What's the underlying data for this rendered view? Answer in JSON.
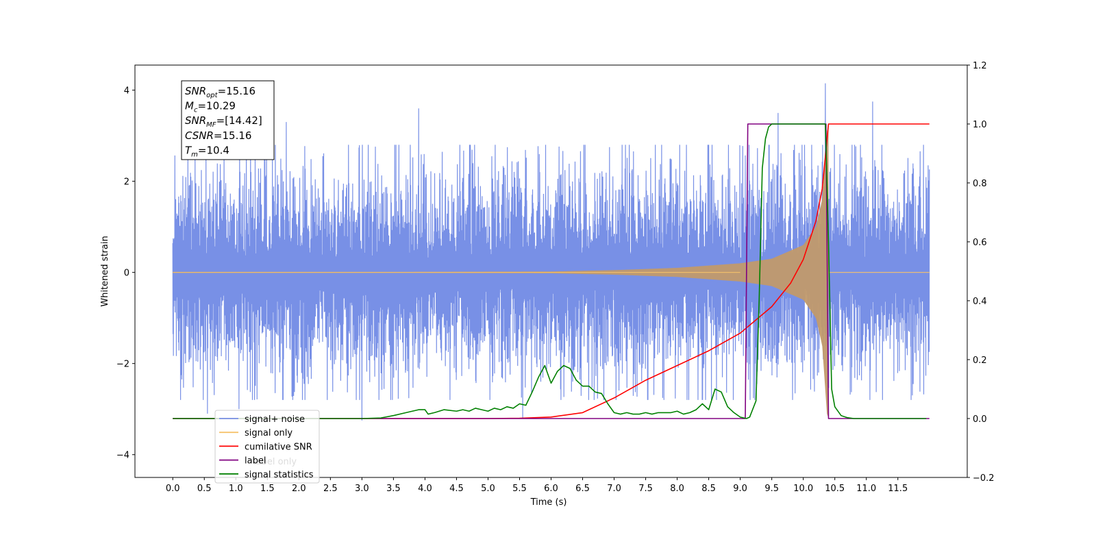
{
  "chart_data": {
    "type": "line",
    "xlabel": "Time (s)",
    "ylabel": "Whitened strain",
    "xlim": [
      -0.6,
      12.6
    ],
    "ylim": [
      -4.5,
      4.55
    ],
    "y2lim": [
      -0.2,
      1.2
    ],
    "x_ticks": [
      "0.0",
      "0.5",
      "1.0",
      "1.5",
      "2.0",
      "2.5",
      "3.0",
      "3.5",
      "4.0",
      "4.5",
      "5.0",
      "5.5",
      "6.0",
      "6.5",
      "7.0",
      "7.5",
      "8.0",
      "8.5",
      "9.0",
      "9.5",
      "10.0",
      "10.5",
      "11.0",
      "11.5"
    ],
    "y_ticks": [
      "4",
      "2",
      "0",
      "−2",
      "−4"
    ],
    "y_tick_values": [
      4,
      2,
      0,
      -2,
      -4
    ],
    "y2_ticks": [
      "1.2",
      "1.0",
      "0.8",
      "0.6",
      "0.4",
      "0.2",
      "0.0",
      "−0.2"
    ],
    "y2_tick_values": [
      1.2,
      1.0,
      0.8,
      0.6,
      0.4,
      0.2,
      0.0,
      -0.2
    ],
    "annotation": {
      "lines": [
        {
          "sym": "SNR",
          "sub": "opt",
          "value": "=15.16"
        },
        {
          "sym": "M",
          "sub": "c",
          "value": "=10.29"
        },
        {
          "sym": "SNR",
          "sub": "MF",
          "value": "=[14.42]"
        },
        {
          "sym": "CSNR",
          "sub": "",
          "value": "=15.16"
        },
        {
          "sym": "T",
          "sub": "m",
          "value": "=10.4"
        }
      ]
    },
    "legend": {
      "placement": "lower-left",
      "entries": [
        "signal+ noise",
        "signal only",
        "cumilative SNR",
        "label",
        "signal statistics"
      ],
      "ghost_labels": [
        "label only"
      ]
    },
    "series": [
      {
        "name": "signal+ noise",
        "axis": "left",
        "color": "#7890e6",
        "t_range": [
          0.0,
          12.0
        ],
        "typical_envelope": 2.0,
        "notable_peaks": [
          [
            0.55,
            -3.1
          ],
          [
            1.05,
            -3.0
          ],
          [
            1.8,
            3.3
          ],
          [
            3.0,
            -3.25
          ],
          [
            3.9,
            3.6
          ],
          [
            5.55,
            -3.2
          ],
          [
            9.6,
            3.5
          ],
          [
            10.35,
            4.15
          ],
          [
            11.1,
            3.75
          ],
          [
            11.1,
            -4.1
          ]
        ]
      },
      {
        "name": "signal only",
        "axis": "left",
        "color": "#f6c26b",
        "t_range": [
          0.0,
          10.4
        ],
        "merger_time": 10.4,
        "peak_amplitude": 3.2,
        "envelope": [
          [
            0.0,
            0.0
          ],
          [
            6.0,
            0.02
          ],
          [
            7.0,
            0.05
          ],
          [
            8.0,
            0.1
          ],
          [
            9.0,
            0.2
          ],
          [
            9.5,
            0.3
          ],
          [
            10.0,
            0.6
          ],
          [
            10.2,
            1.0
          ],
          [
            10.3,
            1.6
          ],
          [
            10.38,
            3.2
          ]
        ]
      },
      {
        "name": "cumilative SNR",
        "axis": "right",
        "color": "#ff0000",
        "x": [
          0.0,
          5.0,
          5.5,
          6.0,
          6.5,
          7.0,
          7.5,
          8.0,
          8.5,
          9.0,
          9.5,
          9.8,
          10.0,
          10.2,
          10.3,
          10.4,
          12.0
        ],
        "values": [
          0.0,
          0.0,
          0.001,
          0.005,
          0.02,
          0.07,
          0.13,
          0.18,
          0.23,
          0.29,
          0.38,
          0.46,
          0.54,
          0.67,
          0.78,
          1.0,
          1.0
        ]
      },
      {
        "name": "label",
        "axis": "right",
        "color": "#800080",
        "x": [
          0.0,
          9.08,
          9.12,
          10.36,
          10.4,
          12.0
        ],
        "values": [
          0.0,
          0.0,
          1.0,
          1.0,
          0.0,
          0.0
        ]
      },
      {
        "name": "signal statistics",
        "axis": "right",
        "color": "#008000",
        "x": [
          0.0,
          3.0,
          3.3,
          3.5,
          3.7,
          3.8,
          3.9,
          4.0,
          4.05,
          4.15,
          4.3,
          4.5,
          4.6,
          4.7,
          4.8,
          4.9,
          5.0,
          5.1,
          5.2,
          5.3,
          5.4,
          5.5,
          5.6,
          5.7,
          5.8,
          5.9,
          6.0,
          6.1,
          6.2,
          6.3,
          6.4,
          6.5,
          6.6,
          6.7,
          6.8,
          6.9,
          7.0,
          7.1,
          7.2,
          7.3,
          7.4,
          7.5,
          7.6,
          7.7,
          7.8,
          7.9,
          8.0,
          8.1,
          8.2,
          8.3,
          8.4,
          8.5,
          8.6,
          8.7,
          8.8,
          8.9,
          9.0,
          9.1,
          9.15,
          9.25,
          9.3,
          9.35,
          9.4,
          9.45,
          9.5,
          10.35,
          10.4,
          10.45,
          10.5,
          10.6,
          10.7,
          10.8,
          11.0,
          11.5,
          11.95
        ],
        "values": [
          0.0,
          0.0,
          0.002,
          0.01,
          0.02,
          0.025,
          0.03,
          0.03,
          0.015,
          0.02,
          0.03,
          0.025,
          0.03,
          0.025,
          0.035,
          0.03,
          0.025,
          0.035,
          0.03,
          0.04,
          0.035,
          0.05,
          0.045,
          0.09,
          0.14,
          0.18,
          0.12,
          0.16,
          0.18,
          0.17,
          0.13,
          0.11,
          0.11,
          0.09,
          0.085,
          0.05,
          0.02,
          0.015,
          0.02,
          0.015,
          0.015,
          0.02,
          0.015,
          0.02,
          0.02,
          0.02,
          0.025,
          0.015,
          0.02,
          0.03,
          0.05,
          0.03,
          0.1,
          0.09,
          0.04,
          0.02,
          0.005,
          0.0,
          0.005,
          0.06,
          0.4,
          0.85,
          0.95,
          0.99,
          1.0,
          1.0,
          0.6,
          0.1,
          0.04,
          0.01,
          0.003,
          0.0,
          0.0,
          0.0,
          0.0
        ]
      }
    ]
  }
}
